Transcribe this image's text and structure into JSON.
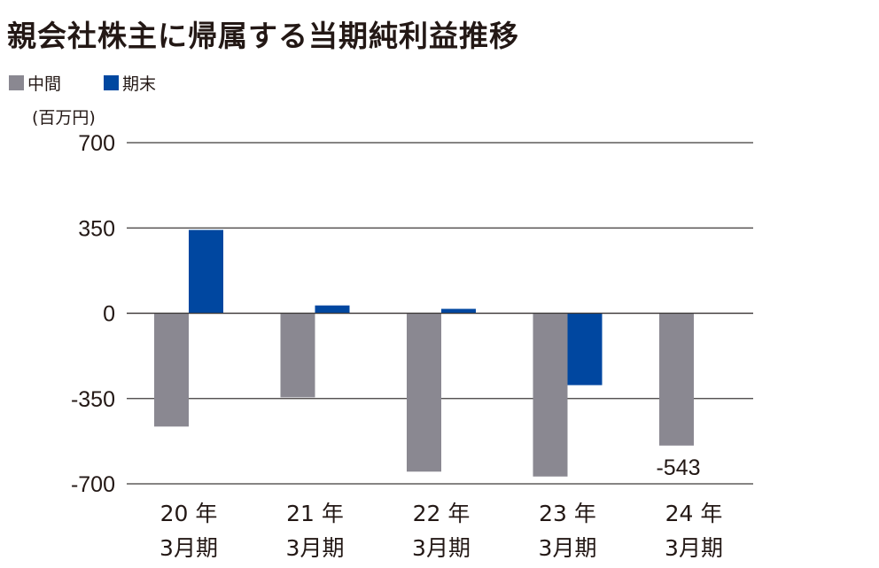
{
  "chart_data": {
    "type": "bar",
    "title": "親会社株主に帰属する当期純利益推移",
    "unit": "(百万円)",
    "categories": [
      [
        "20 年",
        "3月期"
      ],
      [
        "21 年",
        "3月期"
      ],
      [
        "22 年",
        "3月期"
      ],
      [
        "23 年",
        "3月期"
      ],
      [
        "24 年",
        "3月期"
      ]
    ],
    "series": [
      {
        "name": "中間",
        "color": "#8a8891",
        "values": [
          -465,
          -345,
          -650,
          -670,
          -543
        ]
      },
      {
        "name": "期末",
        "color": "#0047a0",
        "values": [
          342,
          32,
          18,
          -295,
          null
        ]
      }
    ],
    "ylim": [
      -700,
      700
    ],
    "yticks": [
      700,
      350,
      0,
      -350,
      -700
    ],
    "grid": true,
    "legend_position": "top-left",
    "data_labels": [
      {
        "series": 0,
        "index": 4,
        "text": "-543"
      }
    ]
  }
}
